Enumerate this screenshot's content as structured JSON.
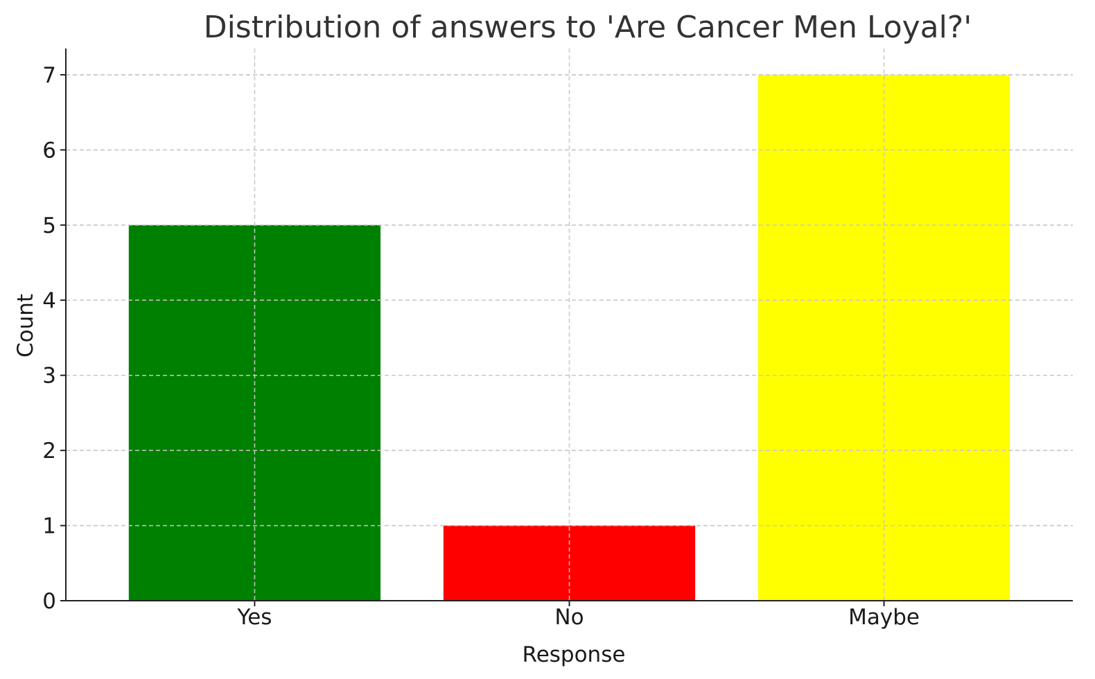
{
  "chart_data": {
    "type": "bar",
    "title": "Distribution of answers to 'Are Cancer Men Loyal?'",
    "xlabel": "Response",
    "ylabel": "Count",
    "categories": [
      "Yes",
      "No",
      "Maybe"
    ],
    "values": [
      5,
      1,
      7
    ],
    "colors": [
      "#008000",
      "#ff0000",
      "#ffff00"
    ],
    "ylim": [
      0,
      7.35
    ],
    "yticks": [
      0,
      1,
      2,
      3,
      4,
      5,
      6,
      7
    ],
    "grid": true,
    "legend": "none"
  }
}
